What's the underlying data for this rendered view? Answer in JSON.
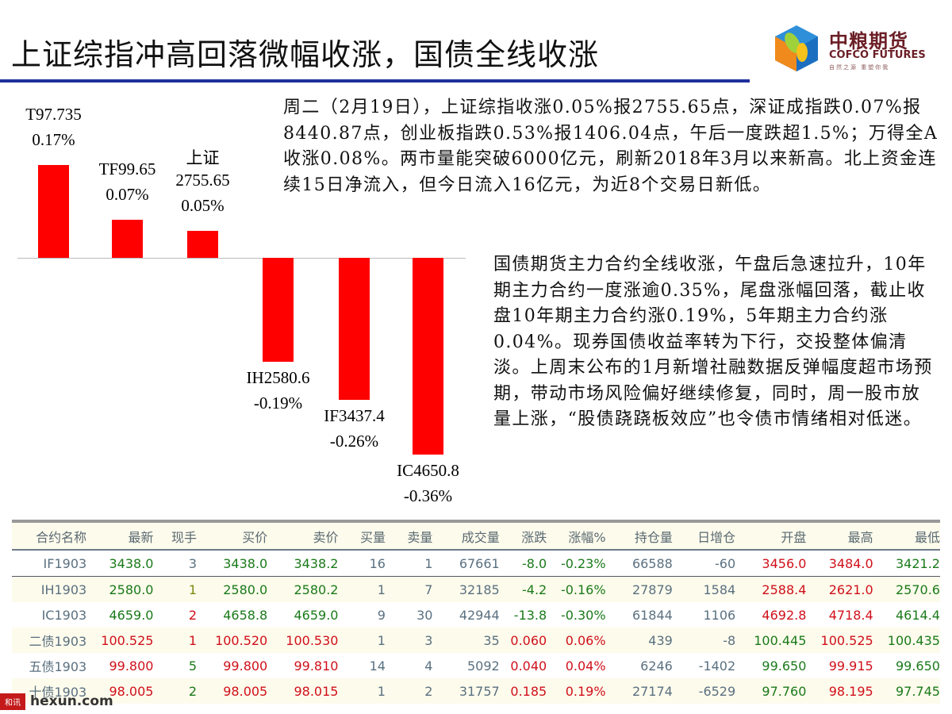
{
  "title": "上证综指冲高回落微幅收涨，国债全线收涨",
  "logo": {
    "cn": "中粮期货",
    "en": "COFCO FUTURES",
    "slogan": "自然之源 重塑你我"
  },
  "paragraphs": [
    "周二（2月19日），上证综指收涨0.05%报2755.65点，深证成指跌0.07%报8440.87点，创业板指跌0.53%报1406.04点，午后一度跌超1.5%；万得全A收涨0.08%。两市量能突破6000亿元，刷新2018年3月以来新高。北上资金连续15日净流入，但今日流入16亿元，为近8个交易日新低。",
    "国债期货主力合约全线收涨，午盘后急速拉升，10年期主力合约一度涨逾0.35%，尾盘涨幅回落，截止收盘10年期主力合约涨0.19%，5年期主力合约涨0.04%。现券国债收益率转为下行，交投整体偏清淡。上周末公布的1月新增社融数据反弹幅度超市场预期，带动市场风险偏好继续修复，同时，周一股市放量上涨，“股债跷跷板效应”也令债市情绪相对低迷。"
  ],
  "chart_data": {
    "type": "bar",
    "categories": [
      "T97.735",
      "TF99.65",
      "上证 2755.65",
      "IH2580.6",
      "IF3437.4",
      "IC4650.8"
    ],
    "labels": [
      [
        "T97.735",
        "0.17%"
      ],
      [
        "TF99.65",
        "0.07%"
      ],
      [
        "上证",
        "2755.65",
        "0.05%"
      ],
      [
        "IH2580.6",
        "-0.19%"
      ],
      [
        "IF3437.4",
        "-0.26%"
      ],
      [
        "IC4650.8",
        "-0.36%"
      ]
    ],
    "values": [
      0.17,
      0.07,
      0.05,
      -0.19,
      -0.26,
      -0.36
    ],
    "unit": "%",
    "color": "#ff0000"
  },
  "table": {
    "headers": [
      "合约名称",
      "最新",
      "现手",
      "买价",
      "卖价",
      "买量",
      "卖量",
      "成交量",
      "涨跌",
      "涨幅%",
      "持仓量",
      "日增仓",
      "开盘",
      "最高",
      "最低"
    ],
    "rows": [
      [
        "IF1903",
        "3438.0",
        "3",
        "3438.0",
        "3438.2",
        "16",
        "1",
        "67661",
        "-8.0",
        "-0.23%",
        "66588",
        "-60",
        "3456.0",
        "3484.0",
        "3421.2"
      ],
      [
        "IH1903",
        "2580.0",
        "1",
        "2580.0",
        "2580.2",
        "1",
        "7",
        "32185",
        "-4.2",
        "-0.16%",
        "27879",
        "1584",
        "2588.4",
        "2621.0",
        "2570.6"
      ],
      [
        "IC1903",
        "4659.0",
        "2",
        "4658.8",
        "4659.0",
        "9",
        "30",
        "42944",
        "-13.8",
        "-0.30%",
        "61844",
        "1106",
        "4692.8",
        "4718.4",
        "4614.4"
      ],
      [
        "二债1903",
        "100.525",
        "1",
        "100.520",
        "100.530",
        "1",
        "3",
        "35",
        "0.060",
        "0.06%",
        "439",
        "-8",
        "100.445",
        "100.525",
        "100.435"
      ],
      [
        "五债1903",
        "99.800",
        "5",
        "99.800",
        "99.810",
        "14",
        "4",
        "5092",
        "0.040",
        "0.04%",
        "6246",
        "-1402",
        "99.650",
        "99.915",
        "99.650"
      ],
      [
        "十债1903",
        "98.005",
        "2",
        "98.005",
        "98.015",
        "1",
        "2",
        "31757",
        "0.185",
        "0.19%",
        "27174",
        "-6529",
        "97.760",
        "98.195",
        "97.745"
      ]
    ],
    "colors": [
      [
        "n",
        "g",
        "n",
        "g",
        "g",
        "n",
        "n",
        "n",
        "g",
        "g",
        "n",
        "n",
        "r",
        "r",
        "g"
      ],
      [
        "n",
        "g",
        "o",
        "g",
        "g",
        "n",
        "n",
        "n",
        "g",
        "g",
        "n",
        "n",
        "r",
        "r",
        "g"
      ],
      [
        "n",
        "g",
        "r",
        "g",
        "g",
        "n",
        "n",
        "n",
        "g",
        "g",
        "n",
        "n",
        "r",
        "r",
        "g"
      ],
      [
        "n",
        "r",
        "r",
        "r",
        "r",
        "n",
        "n",
        "n",
        "r",
        "r",
        "n",
        "n",
        "g",
        "r",
        "g"
      ],
      [
        "n",
        "r",
        "g",
        "r",
        "r",
        "n",
        "n",
        "n",
        "r",
        "r",
        "n",
        "n",
        "g",
        "r",
        "g"
      ],
      [
        "n",
        "r",
        "g",
        "r",
        "r",
        "n",
        "n",
        "n",
        "r",
        "r",
        "n",
        "n",
        "g",
        "r",
        "g"
      ]
    ]
  },
  "watermark": {
    "badge": "和讯",
    "site": "hexun.com"
  }
}
